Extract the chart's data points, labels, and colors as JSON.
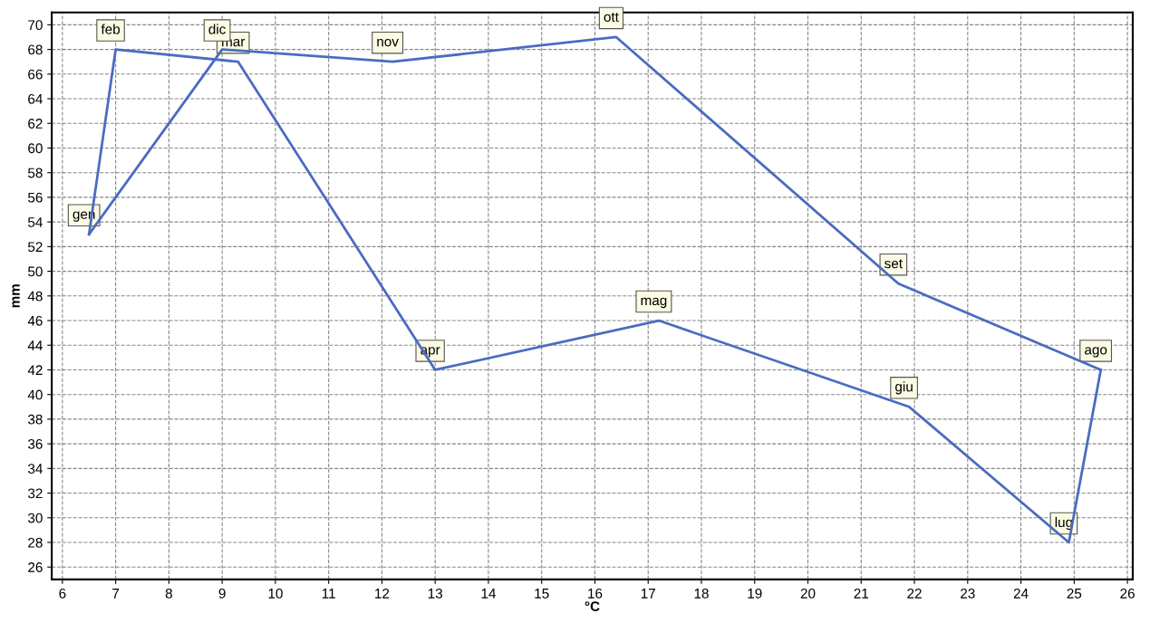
{
  "chart_data": {
    "type": "line",
    "xlabel": "°C",
    "ylabel": "mm",
    "series": [
      {
        "color": "#4a6cc0",
        "x": [
          6.5,
          7.0,
          9.3,
          13.0,
          17.2,
          21.9,
          24.9,
          25.5
        ],
        "values": [
          53,
          68,
          67,
          42,
          46,
          39,
          28,
          42
        ]
      },
      {
        "color": "#4a6cc0",
        "x": [
          6.5,
          9.0,
          12.2,
          16.4,
          21.7,
          25.5
        ],
        "values": [
          53,
          68,
          67,
          69,
          49,
          42
        ]
      }
    ],
    "annotations": [
      {
        "text": "gen",
        "x": 6.5,
        "y": 53
      },
      {
        "text": "feb",
        "x": 7.0,
        "y": 68
      },
      {
        "text": "mar",
        "x": 9.3,
        "y": 67
      },
      {
        "text": "apr",
        "x": 13.0,
        "y": 42
      },
      {
        "text": "mag",
        "x": 17.2,
        "y": 46
      },
      {
        "text": "giu",
        "x": 21.9,
        "y": 39
      },
      {
        "text": "lug",
        "x": 24.9,
        "y": 28
      },
      {
        "text": "ago",
        "x": 25.5,
        "y": 42
      },
      {
        "text": "set",
        "x": 21.7,
        "y": 49
      },
      {
        "text": "ott",
        "x": 16.4,
        "y": 69
      },
      {
        "text": "nov",
        "x": 12.2,
        "y": 67
      },
      {
        "text": "dic",
        "x": 9.0,
        "y": 68
      }
    ],
    "xlim": [
      5.8,
      26.1
    ],
    "ylim": [
      25,
      71
    ],
    "xticks": [
      6,
      7,
      8,
      9,
      10,
      11,
      12,
      13,
      14,
      15,
      16,
      17,
      18,
      19,
      20,
      21,
      22,
      23,
      24,
      25,
      26
    ],
    "yticks": [
      26,
      28,
      30,
      32,
      34,
      36,
      38,
      40,
      42,
      44,
      46,
      48,
      50,
      52,
      54,
      56,
      58,
      60,
      62,
      64,
      66,
      68,
      70
    ],
    "grid": true,
    "marker": "none",
    "line_style": "solid",
    "legend": false
  }
}
